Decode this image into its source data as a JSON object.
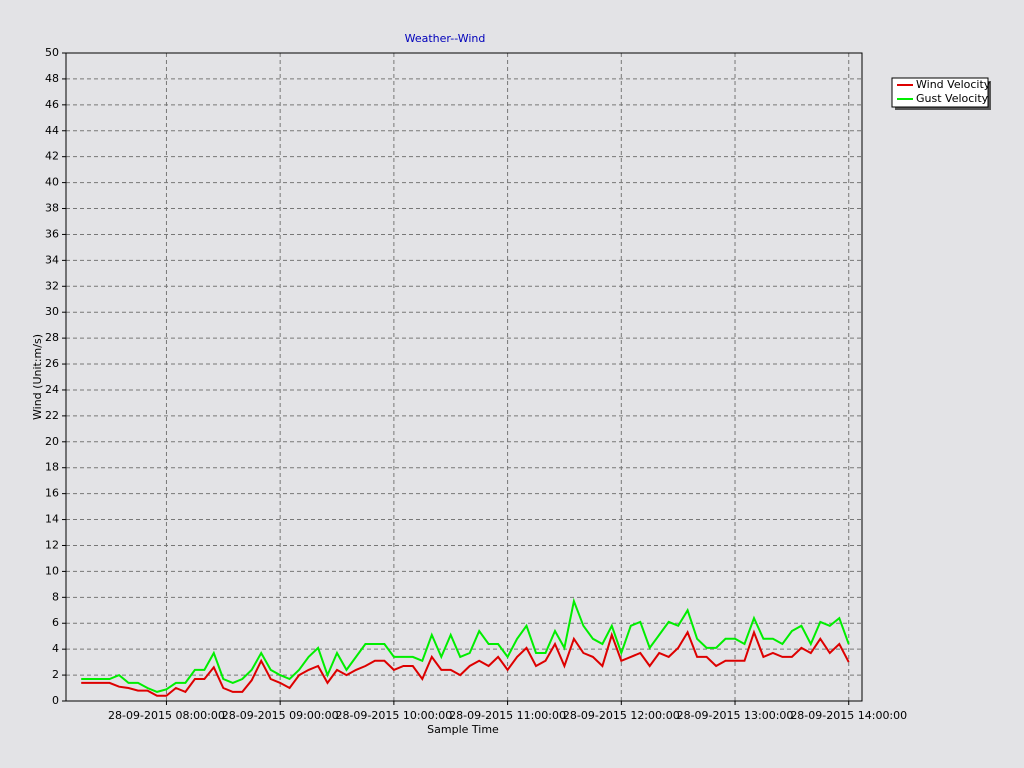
{
  "chart_data": {
    "type": "line",
    "title": "Weather--Wind",
    "x_label": "Sample Time",
    "y_label": "Wind (Unit:m/s)",
    "x": [
      "28-09-2015 07:15:00",
      "28-09-2015 07:20:00",
      "28-09-2015 07:25:00",
      "28-09-2015 07:30:00",
      "28-09-2015 07:35:00",
      "28-09-2015 07:40:00",
      "28-09-2015 07:45:00",
      "28-09-2015 07:50:00",
      "28-09-2015 07:55:00",
      "28-09-2015 08:00:00",
      "28-09-2015 08:05:00",
      "28-09-2015 08:10:00",
      "28-09-2015 08:15:00",
      "28-09-2015 08:20:00",
      "28-09-2015 08:25:00",
      "28-09-2015 08:30:00",
      "28-09-2015 08:35:00",
      "28-09-2015 08:40:00",
      "28-09-2015 08:45:00",
      "28-09-2015 08:50:00",
      "28-09-2015 08:55:00",
      "28-09-2015 09:00:00",
      "28-09-2015 09:05:00",
      "28-09-2015 09:10:00",
      "28-09-2015 09:15:00",
      "28-09-2015 09:20:00",
      "28-09-2015 09:25:00",
      "28-09-2015 09:30:00",
      "28-09-2015 09:35:00",
      "28-09-2015 09:40:00",
      "28-09-2015 09:45:00",
      "28-09-2015 09:50:00",
      "28-09-2015 09:55:00",
      "28-09-2015 10:00:00",
      "28-09-2015 10:05:00",
      "28-09-2015 10:10:00",
      "28-09-2015 10:15:00",
      "28-09-2015 10:20:00",
      "28-09-2015 10:25:00",
      "28-09-2015 10:30:00",
      "28-09-2015 10:35:00",
      "28-09-2015 10:40:00",
      "28-09-2015 10:45:00",
      "28-09-2015 10:50:00",
      "28-09-2015 10:55:00",
      "28-09-2015 11:00:00",
      "28-09-2015 11:05:00",
      "28-09-2015 11:10:00",
      "28-09-2015 11:15:00",
      "28-09-2015 11:20:00",
      "28-09-2015 11:25:00",
      "28-09-2015 11:30:00",
      "28-09-2015 11:35:00",
      "28-09-2015 11:40:00",
      "28-09-2015 11:45:00",
      "28-09-2015 11:50:00",
      "28-09-2015 11:55:00",
      "28-09-2015 12:00:00",
      "28-09-2015 12:05:00",
      "28-09-2015 12:10:00",
      "28-09-2015 12:15:00",
      "28-09-2015 12:20:00",
      "28-09-2015 12:25:00",
      "28-09-2015 12:30:00",
      "28-09-2015 12:35:00",
      "28-09-2015 12:40:00",
      "28-09-2015 12:45:00",
      "28-09-2015 12:50:00",
      "28-09-2015 12:55:00",
      "28-09-2015 13:00:00",
      "28-09-2015 13:05:00",
      "28-09-2015 13:10:00",
      "28-09-2015 13:15:00",
      "28-09-2015 13:20:00",
      "28-09-2015 13:25:00",
      "28-09-2015 13:30:00",
      "28-09-2015 13:35:00",
      "28-09-2015 13:40:00",
      "28-09-2015 13:45:00",
      "28-09-2015 13:50:00",
      "28-09-2015 13:55:00",
      "28-09-2015 14:00:00"
    ],
    "series": [
      {
        "name": "Wind Velocity",
        "color": "#dd0000",
        "values": [
          1.4,
          1.4,
          1.4,
          1.4,
          1.1,
          1.0,
          0.8,
          0.8,
          0.4,
          0.4,
          1.0,
          0.7,
          1.7,
          1.7,
          2.6,
          1.0,
          0.7,
          0.7,
          1.6,
          3.1,
          1.7,
          1.4,
          1.0,
          2.0,
          2.4,
          2.7,
          1.4,
          2.4,
          2.0,
          2.4,
          2.7,
          3.1,
          3.1,
          2.4,
          2.7,
          2.7,
          1.7,
          3.4,
          2.4,
          2.4,
          2.0,
          2.7,
          3.1,
          2.7,
          3.4,
          2.4,
          3.4,
          4.1,
          2.7,
          3.1,
          4.4,
          2.7,
          4.8,
          3.7,
          3.4,
          2.7,
          5.1,
          3.1,
          3.4,
          3.7,
          2.7,
          3.7,
          3.4,
          4.1,
          5.3,
          3.4,
          3.4,
          2.7,
          3.1,
          3.1,
          3.1,
          5.3,
          3.4,
          3.7,
          3.4,
          3.4,
          4.1,
          3.7,
          4.8,
          3.7,
          4.4,
          3.0
        ]
      },
      {
        "name": "Gust Velocity",
        "color": "#00ee00",
        "values": [
          1.7,
          1.7,
          1.7,
          1.7,
          2.0,
          1.4,
          1.4,
          1.0,
          0.7,
          0.9,
          1.4,
          1.4,
          2.4,
          2.4,
          3.7,
          1.7,
          1.4,
          1.7,
          2.4,
          3.7,
          2.4,
          2.0,
          1.7,
          2.4,
          3.4,
          4.1,
          2.0,
          3.7,
          2.4,
          3.4,
          4.4,
          4.4,
          4.4,
          3.4,
          3.4,
          3.4,
          3.1,
          5.1,
          3.4,
          5.1,
          3.4,
          3.7,
          5.4,
          4.4,
          4.4,
          3.4,
          4.8,
          5.8,
          3.7,
          3.7,
          5.4,
          4.1,
          7.7,
          5.8,
          4.8,
          4.4,
          5.8,
          3.7,
          5.8,
          6.1,
          4.1,
          5.1,
          6.1,
          5.8,
          7.0,
          4.8,
          4.1,
          4.1,
          4.8,
          4.8,
          4.4,
          6.4,
          4.8,
          4.8,
          4.4,
          5.4,
          5.8,
          4.4,
          6.1,
          5.8,
          6.4,
          4.4
        ]
      }
    ],
    "xlim": [
      "28-09-2015 07:07:00",
      "28-09-2015 14:07:00"
    ],
    "xticks": [
      "28-09-2015 08:00:00",
      "28-09-2015 09:00:00",
      "28-09-2015 10:00:00",
      "28-09-2015 11:00:00",
      "28-09-2015 12:00:00",
      "28-09-2015 13:00:00",
      "28-09-2015 14:00:00"
    ],
    "ylim": [
      0,
      50
    ],
    "yticks": [
      0,
      2,
      4,
      6,
      8,
      10,
      12,
      14,
      16,
      18,
      20,
      22,
      24,
      26,
      28,
      30,
      32,
      34,
      36,
      38,
      40,
      42,
      44,
      46,
      48,
      50
    ],
    "grid": true,
    "legend": "upper right"
  }
}
